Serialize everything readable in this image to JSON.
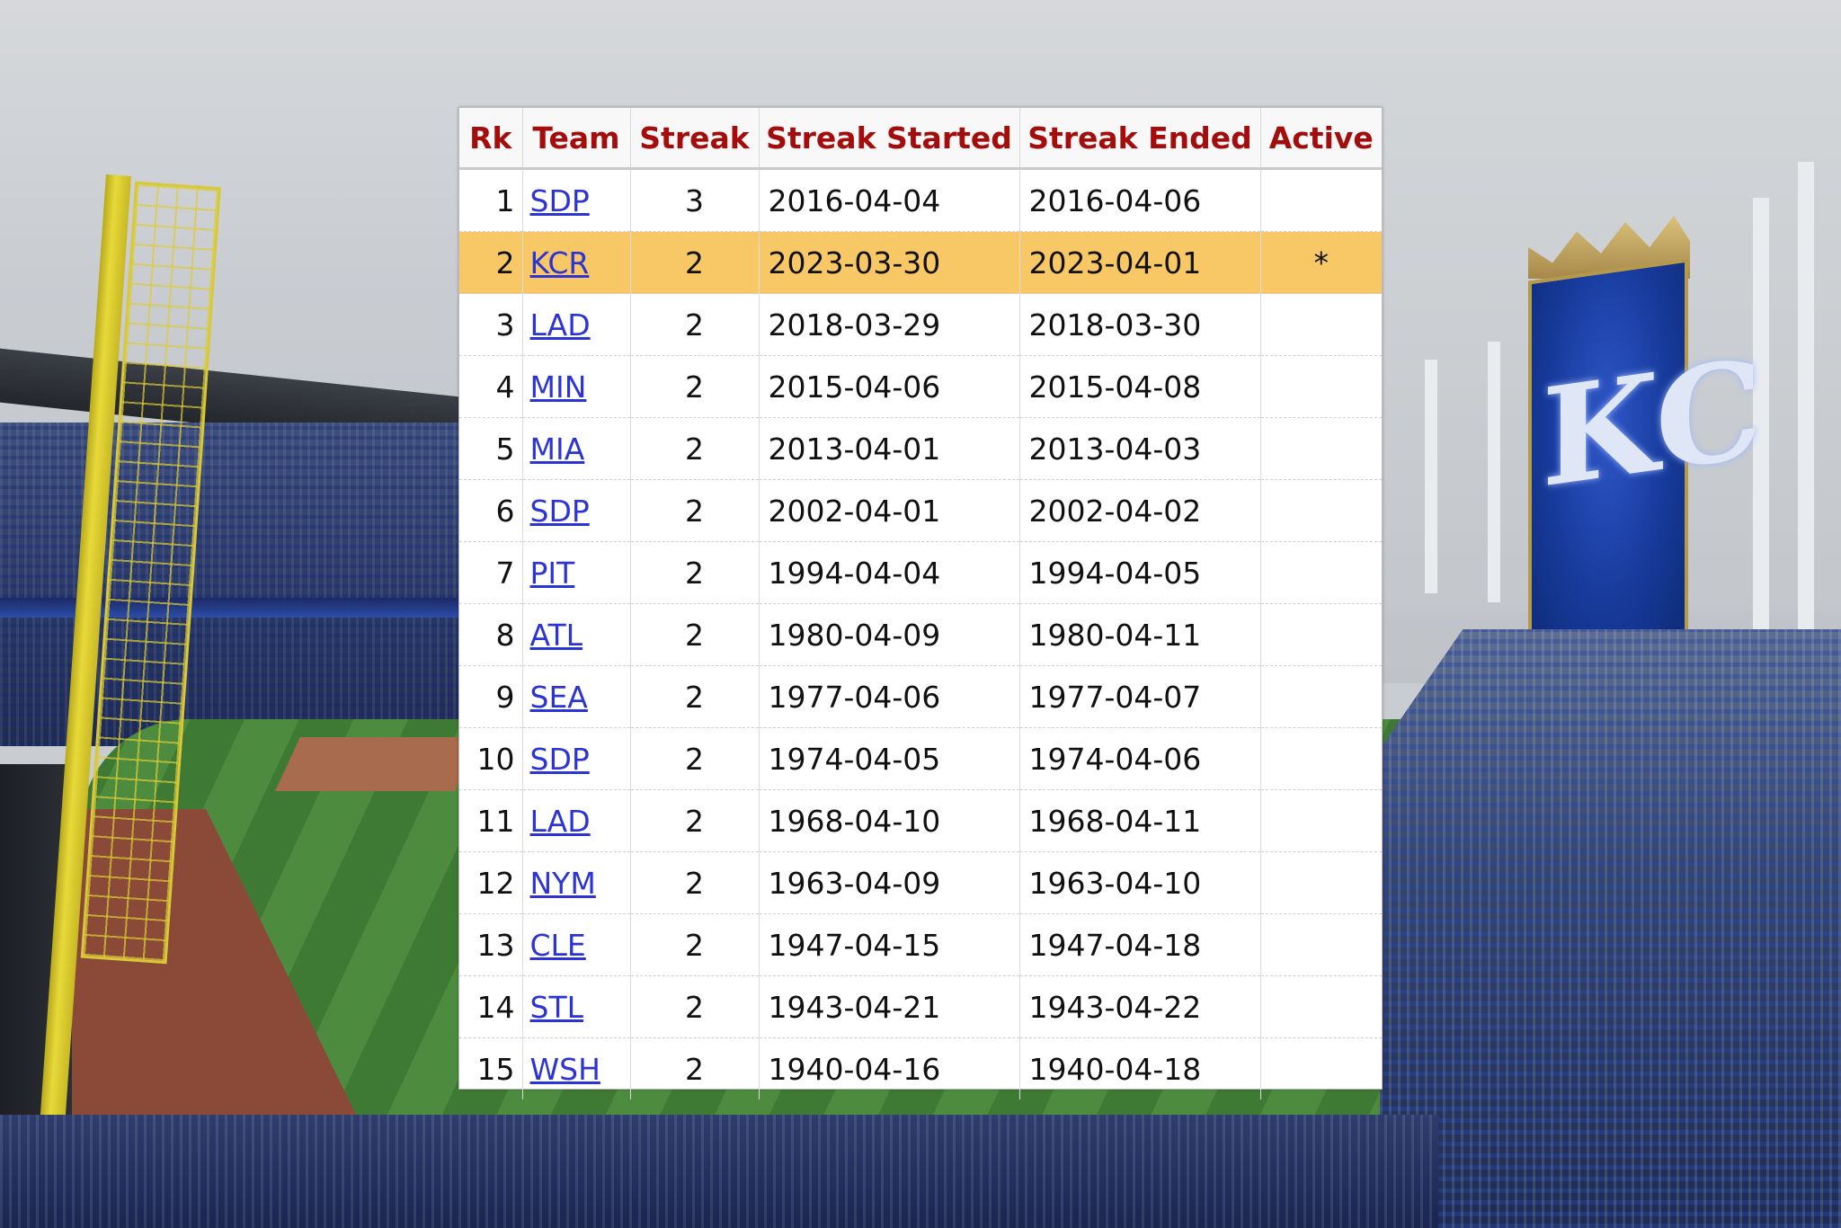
{
  "table": {
    "headers": {
      "rk": "Rk",
      "team": "Team",
      "streak": "Streak",
      "started": "Streak Started",
      "ended": "Streak Ended",
      "active": "Active"
    },
    "highlight_color": "#f8c766",
    "header_color": "#a50d0d",
    "link_color": "#2c34d6",
    "rows": [
      {
        "rk": "1",
        "team": "SDP",
        "streak": "3",
        "started": "2016-04-04",
        "ended": "2016-04-06",
        "active": ""
      },
      {
        "rk": "2",
        "team": "KCR",
        "streak": "2",
        "started": "2023-03-30",
        "ended": "2023-04-01",
        "active": "*"
      },
      {
        "rk": "3",
        "team": "LAD",
        "streak": "2",
        "started": "2018-03-29",
        "ended": "2018-03-30",
        "active": ""
      },
      {
        "rk": "4",
        "team": "MIN",
        "streak": "2",
        "started": "2015-04-06",
        "ended": "2015-04-08",
        "active": ""
      },
      {
        "rk": "5",
        "team": "MIA",
        "streak": "2",
        "started": "2013-04-01",
        "ended": "2013-04-03",
        "active": ""
      },
      {
        "rk": "6",
        "team": "SDP",
        "streak": "2",
        "started": "2002-04-01",
        "ended": "2002-04-02",
        "active": ""
      },
      {
        "rk": "7",
        "team": "PIT",
        "streak": "2",
        "started": "1994-04-04",
        "ended": "1994-04-05",
        "active": ""
      },
      {
        "rk": "8",
        "team": "ATL",
        "streak": "2",
        "started": "1980-04-09",
        "ended": "1980-04-11",
        "active": ""
      },
      {
        "rk": "9",
        "team": "SEA",
        "streak": "2",
        "started": "1977-04-06",
        "ended": "1977-04-07",
        "active": ""
      },
      {
        "rk": "10",
        "team": "SDP",
        "streak": "2",
        "started": "1974-04-05",
        "ended": "1974-04-06",
        "active": ""
      },
      {
        "rk": "11",
        "team": "LAD",
        "streak": "2",
        "started": "1968-04-10",
        "ended": "1968-04-11",
        "active": ""
      },
      {
        "rk": "12",
        "team": "NYM",
        "streak": "2",
        "started": "1963-04-09",
        "ended": "1963-04-10",
        "active": ""
      },
      {
        "rk": "13",
        "team": "CLE",
        "streak": "2",
        "started": "1947-04-15",
        "ended": "1947-04-18",
        "active": ""
      },
      {
        "rk": "14",
        "team": "STL",
        "streak": "2",
        "started": "1943-04-21",
        "ended": "1943-04-22",
        "active": ""
      },
      {
        "rk": "15",
        "team": "WSH",
        "streak": "2",
        "started": "1940-04-16",
        "ended": "1940-04-18",
        "active": ""
      }
    ]
  },
  "background": {
    "scoreboard_logo": "KC",
    "scene": "stadium-photo"
  }
}
